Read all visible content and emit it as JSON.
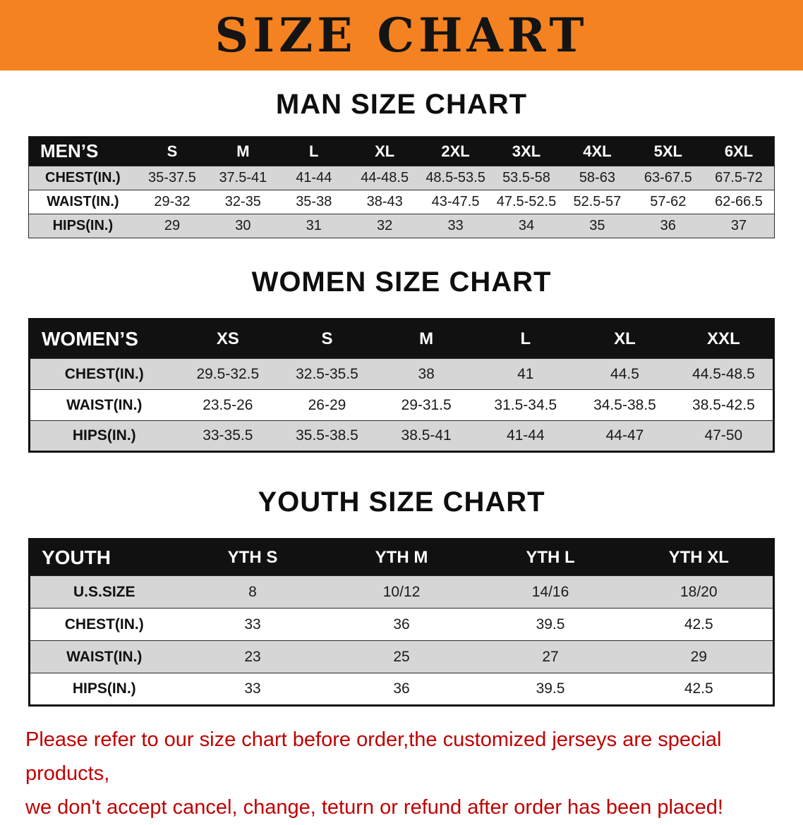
{
  "banner": {
    "title": "SIZE CHART",
    "bg_color": "#f58220"
  },
  "sections": {
    "men": {
      "heading": "MAN SIZE CHART",
      "table": {
        "label": "MEN’S",
        "columns": [
          "S",
          "M",
          "L",
          "XL",
          "2XL",
          "3XL",
          "4XL",
          "5XL",
          "6XL"
        ],
        "rows": [
          {
            "label": "CHEST(IN.)",
            "values": [
              "35-37.5",
              "37.5-41",
              "41-44",
              "44-48.5",
              "48.5-53.5",
              "53.5-58",
              "58-63",
              "63-67.5",
              "67.5-72"
            ]
          },
          {
            "label": "WAIST(IN.)",
            "values": [
              "29-32",
              "32-35",
              "35-38",
              "38-43",
              "43-47.5",
              "47.5-52.5",
              "52.5-57",
              "57-62",
              "62-66.5"
            ]
          },
          {
            "label": "HIPS(IN.)",
            "values": [
              "29",
              "30",
              "31",
              "32",
              "33",
              "34",
              "35",
              "36",
              "37"
            ]
          }
        ]
      }
    },
    "women": {
      "heading": "WOMEN SIZE CHART",
      "table": {
        "label": "WOMEN’S",
        "columns": [
          "XS",
          "S",
          "M",
          "L",
          "XL",
          "XXL"
        ],
        "rows": [
          {
            "label": "CHEST(IN.)",
            "values": [
              "29.5-32.5",
              "32.5-35.5",
              "38",
              "41",
              "44.5",
              "44.5-48.5"
            ]
          },
          {
            "label": "WAIST(IN.)",
            "values": [
              "23.5-26",
              "26-29",
              "29-31.5",
              "31.5-34.5",
              "34.5-38.5",
              "38.5-42.5"
            ]
          },
          {
            "label": "HIPS(IN.)",
            "values": [
              "33-35.5",
              "35.5-38.5",
              "38.5-41",
              "41-44",
              "44-47",
              "47-50"
            ]
          }
        ]
      }
    },
    "youth": {
      "heading": "YOUTH SIZE CHART",
      "table": {
        "label": "YOUTH",
        "columns": [
          "YTH S",
          "YTH M",
          "YTH L",
          "YTH XL"
        ],
        "rows": [
          {
            "label": "U.S.SIZE",
            "values": [
              "8",
              "10/12",
              "14/16",
              "18/20"
            ]
          },
          {
            "label": "CHEST(IN.)",
            "values": [
              "33",
              "36",
              "39.5",
              "42.5"
            ]
          },
          {
            "label": "WAIST(IN.)",
            "values": [
              "23",
              "25",
              "27",
              "29"
            ]
          },
          {
            "label": "HIPS(IN.)",
            "values": [
              "33",
              "36",
              "39.5",
              "42.5"
            ]
          }
        ]
      }
    }
  },
  "footer": {
    "line1": "Please refer to our size chart before order,the customized jerseys are special products,",
    "line2": "we don't accept cancel, change, teturn or refund after order has been placed!",
    "color": "#c00000"
  }
}
